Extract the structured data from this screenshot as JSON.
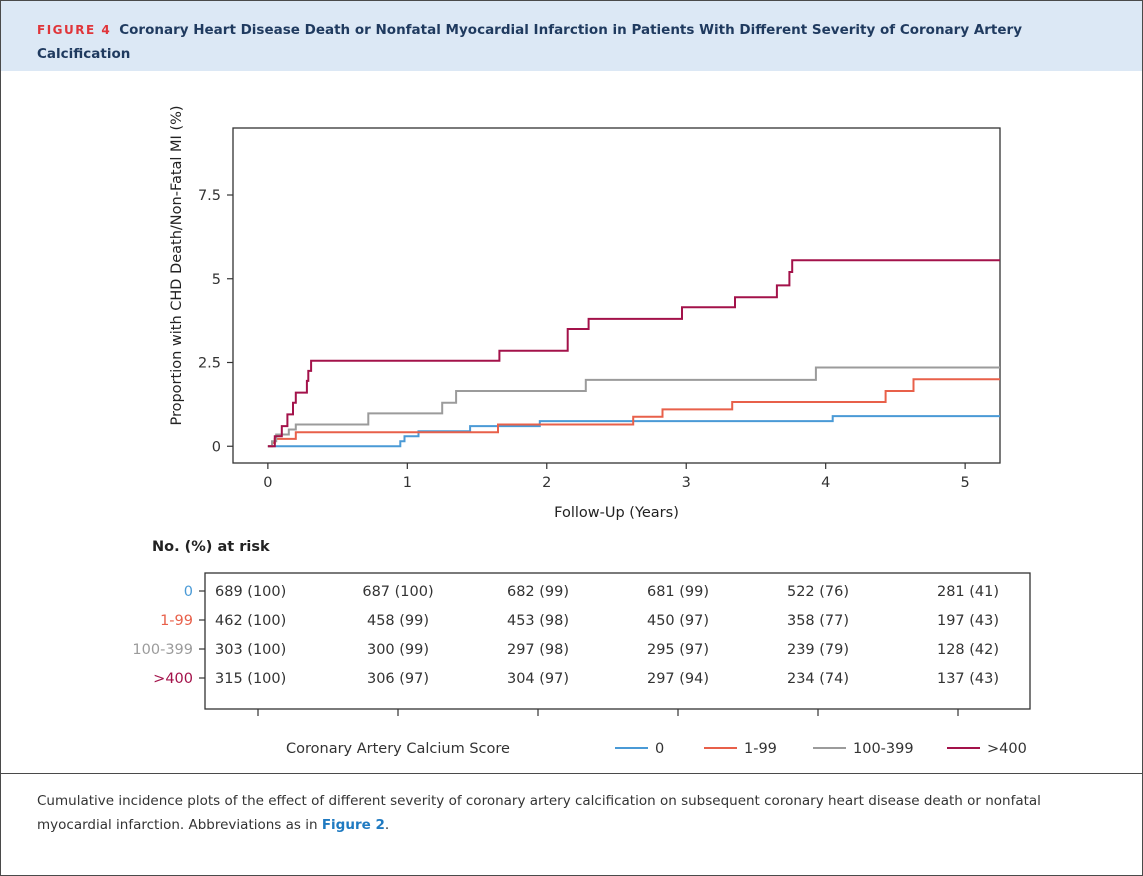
{
  "figure": {
    "label": "FIGURE 4",
    "title": "Coronary Heart Disease Death or Nonfatal Myocardial Infarction in Patients With Different Severity of Coronary Artery Calcification"
  },
  "caption": {
    "text": "Cumulative incidence plots of the effect of different severity of coronary artery calcification on subsequent coronary heart disease death or nonfatal myocardial infarction. Abbreviations as in ",
    "link": "Figure 2",
    "end": "."
  },
  "colors": {
    "s0": "#4a9ad6",
    "s1": "#e8604a",
    "s2": "#9b9b9b",
    "s3": "#a3124a"
  },
  "chart_data": {
    "type": "line",
    "xlabel": "Follow-Up (Years)",
    "ylabel": "Proportion with CHD Death/Non-Fatal MI (%)",
    "xlim": [
      -0.25,
      5.25
    ],
    "ylim": [
      -0.5,
      9.5
    ],
    "xticks": [
      0,
      1,
      2,
      3,
      4,
      5
    ],
    "yticks": [
      0,
      2.5,
      5,
      7.5
    ],
    "ytick_labels": [
      "0",
      "2.5",
      "5",
      "7.5"
    ],
    "series": [
      {
        "name": "0",
        "color": "#4a9ad6",
        "steps": [
          [
            0,
            0
          ],
          [
            0.95,
            0.15
          ],
          [
            0.98,
            0.3
          ],
          [
            1.08,
            0.45
          ],
          [
            1.45,
            0.6
          ],
          [
            1.95,
            0.75
          ],
          [
            4.05,
            0.9
          ],
          [
            5.25,
            0.9
          ]
        ]
      },
      {
        "name": "1-99",
        "color": "#e8604a",
        "steps": [
          [
            0,
            0
          ],
          [
            0.03,
            0.1
          ],
          [
            0.05,
            0.22
          ],
          [
            0.2,
            0.42
          ],
          [
            1.65,
            0.65
          ],
          [
            2.62,
            0.88
          ],
          [
            2.83,
            1.1
          ],
          [
            3.33,
            1.32
          ],
          [
            4.43,
            1.65
          ],
          [
            4.63,
            2.0
          ],
          [
            5.25,
            2.0
          ]
        ]
      },
      {
        "name": "100-399",
        "color": "#9b9b9b",
        "steps": [
          [
            0,
            0
          ],
          [
            0.03,
            0.15
          ],
          [
            0.06,
            0.35
          ],
          [
            0.15,
            0.5
          ],
          [
            0.2,
            0.65
          ],
          [
            0.72,
            0.98
          ],
          [
            1.25,
            1.3
          ],
          [
            1.35,
            1.65
          ],
          [
            2.28,
            1.98
          ],
          [
            3.93,
            2.35
          ],
          [
            5.25,
            2.35
          ]
        ]
      },
      {
        "name": ">400",
        "color": "#a3124a",
        "steps": [
          [
            0,
            0
          ],
          [
            0.05,
            0.3
          ],
          [
            0.1,
            0.6
          ],
          [
            0.14,
            0.95
          ],
          [
            0.18,
            1.3
          ],
          [
            0.2,
            1.6
          ],
          [
            0.28,
            1.95
          ],
          [
            0.29,
            2.25
          ],
          [
            0.31,
            2.55
          ],
          [
            1.66,
            2.85
          ],
          [
            2.15,
            3.5
          ],
          [
            2.3,
            3.8
          ],
          [
            2.97,
            4.15
          ],
          [
            3.35,
            4.45
          ],
          [
            3.65,
            4.8
          ],
          [
            3.74,
            5.2
          ],
          [
            3.76,
            5.55
          ],
          [
            5.25,
            5.55
          ]
        ]
      }
    ],
    "risk_table": {
      "title": "No. (%) at risk",
      "rows": [
        {
          "label": "0",
          "color": "#4a9ad6",
          "values": [
            "689 (100)",
            "687 (100)",
            "682 (99)",
            "681 (99)",
            "522 (76)",
            "281 (41)"
          ]
        },
        {
          "label": "1-99",
          "color": "#e8604a",
          "values": [
            "462 (100)",
            "458 (99)",
            "453 (98)",
            "450 (97)",
            "358 (77)",
            "197 (43)"
          ]
        },
        {
          "label": "100-399",
          "color": "#9b9b9b",
          "values": [
            "303 (100)",
            "300 (99)",
            "297 (98)",
            "295 (97)",
            "239 (79)",
            "128 (42)"
          ]
        },
        {
          "label": ">400",
          "color": "#a3124a",
          "values": [
            "315 (100)",
            "306 (97)",
            "304 (97)",
            "297 (94)",
            "234 (74)",
            "137 (43)"
          ]
        }
      ]
    },
    "legend": {
      "title": "Coronary Artery Calcium Score",
      "placement": "bottom",
      "items": [
        "0",
        "1-99",
        "100-399",
        ">400"
      ]
    }
  }
}
